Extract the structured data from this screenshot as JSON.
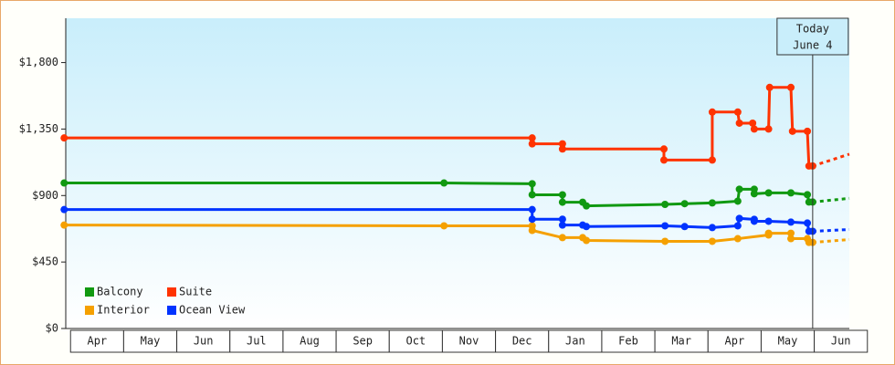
{
  "chart_data": {
    "type": "line",
    "xlim": [
      -0.09,
      14.66
    ],
    "ylim": [
      0,
      2100
    ],
    "yticks": [
      {
        "value": 0,
        "label": "$0"
      },
      {
        "value": 450,
        "label": "$450"
      },
      {
        "value": 900,
        "label": "$900"
      },
      {
        "value": 1350,
        "label": "$1,350"
      },
      {
        "value": 1800,
        "label": "$1,800"
      }
    ],
    "xticks": [
      {
        "value": 0.5,
        "label": "Apr"
      },
      {
        "value": 1.5,
        "label": "May"
      },
      {
        "value": 2.5,
        "label": "Jun"
      },
      {
        "value": 3.5,
        "label": "Jul"
      },
      {
        "value": 4.5,
        "label": "Aug"
      },
      {
        "value": 5.5,
        "label": "Sep"
      },
      {
        "value": 6.5,
        "label": "Oct"
      },
      {
        "value": 7.5,
        "label": "Nov"
      },
      {
        "value": 8.5,
        "label": "Dec"
      },
      {
        "value": 9.5,
        "label": "Jan"
      },
      {
        "value": 10.5,
        "label": "Feb"
      },
      {
        "value": 11.5,
        "label": "Mar"
      },
      {
        "value": 12.5,
        "label": "Apr"
      },
      {
        "value": 13.5,
        "label": "May"
      },
      {
        "value": 14.5,
        "label": "Jun"
      }
    ],
    "today": {
      "x": 13.97,
      "label": [
        "Today",
        "June 4"
      ]
    },
    "series": [
      {
        "name": "Balcony",
        "color": "#119911",
        "x": [
          -0.12,
          7.03,
          8.69,
          8.69,
          9.26,
          9.26,
          9.64,
          9.71,
          11.19,
          11.56,
          12.08,
          12.56,
          12.59,
          12.87,
          12.87,
          13.14,
          13.56,
          13.87,
          13.9,
          13.97
        ],
        "values": [
          985,
          985,
          980,
          905,
          905,
          855,
          855,
          830,
          840,
          845,
          850,
          862,
          943,
          943,
          912,
          918,
          918,
          906,
          856,
          856
        ],
        "projection": {
          "x": [
            13.97,
            14.66
          ],
          "values": [
            856,
            881
          ]
        }
      },
      {
        "name": "Suite",
        "color": "#ff3300",
        "x": [
          -0.12,
          8.69,
          8.69,
          9.26,
          9.26,
          11.17,
          11.17,
          12.08,
          12.08,
          12.56,
          12.59,
          12.84,
          12.87,
          13.14,
          13.16,
          13.56,
          13.59,
          13.87,
          13.9,
          13.97
        ],
        "values": [
          1290,
          1290,
          1250,
          1250,
          1215,
          1215,
          1140,
          1140,
          1465,
          1465,
          1390,
          1390,
          1350,
          1350,
          1632,
          1632,
          1335,
          1335,
          1100,
          1100
        ],
        "projection": {
          "x": [
            13.97,
            14.66
          ],
          "values": [
            1100,
            1180
          ]
        }
      },
      {
        "name": "Interior",
        "color": "#f5a000",
        "x": [
          -0.12,
          7.03,
          8.69,
          8.69,
          9.26,
          9.64,
          9.71,
          11.19,
          12.08,
          12.56,
          13.14,
          13.14,
          13.56,
          13.56,
          13.87,
          13.9,
          13.97
        ],
        "values": [
          700,
          695,
          695,
          664,
          615,
          615,
          596,
          590,
          590,
          608,
          633,
          645,
          645,
          608,
          608,
          583,
          583
        ],
        "projection": {
          "x": [
            13.97,
            14.66
          ],
          "values": [
            583,
            602
          ]
        }
      },
      {
        "name": "Ocean View",
        "color": "#0033ff",
        "x": [
          -0.12,
          8.69,
          8.69,
          9.26,
          9.26,
          9.64,
          9.71,
          11.19,
          11.56,
          12.08,
          12.56,
          12.59,
          12.87,
          12.87,
          13.14,
          13.56,
          13.87,
          13.9,
          13.97
        ],
        "values": [
          805,
          805,
          740,
          740,
          700,
          700,
          690,
          695,
          690,
          683,
          695,
          745,
          739,
          726,
          726,
          720,
          714,
          658,
          658
        ],
        "projection": {
          "x": [
            13.97,
            14.66
          ],
          "values": [
            658,
            670
          ]
        }
      }
    ]
  }
}
